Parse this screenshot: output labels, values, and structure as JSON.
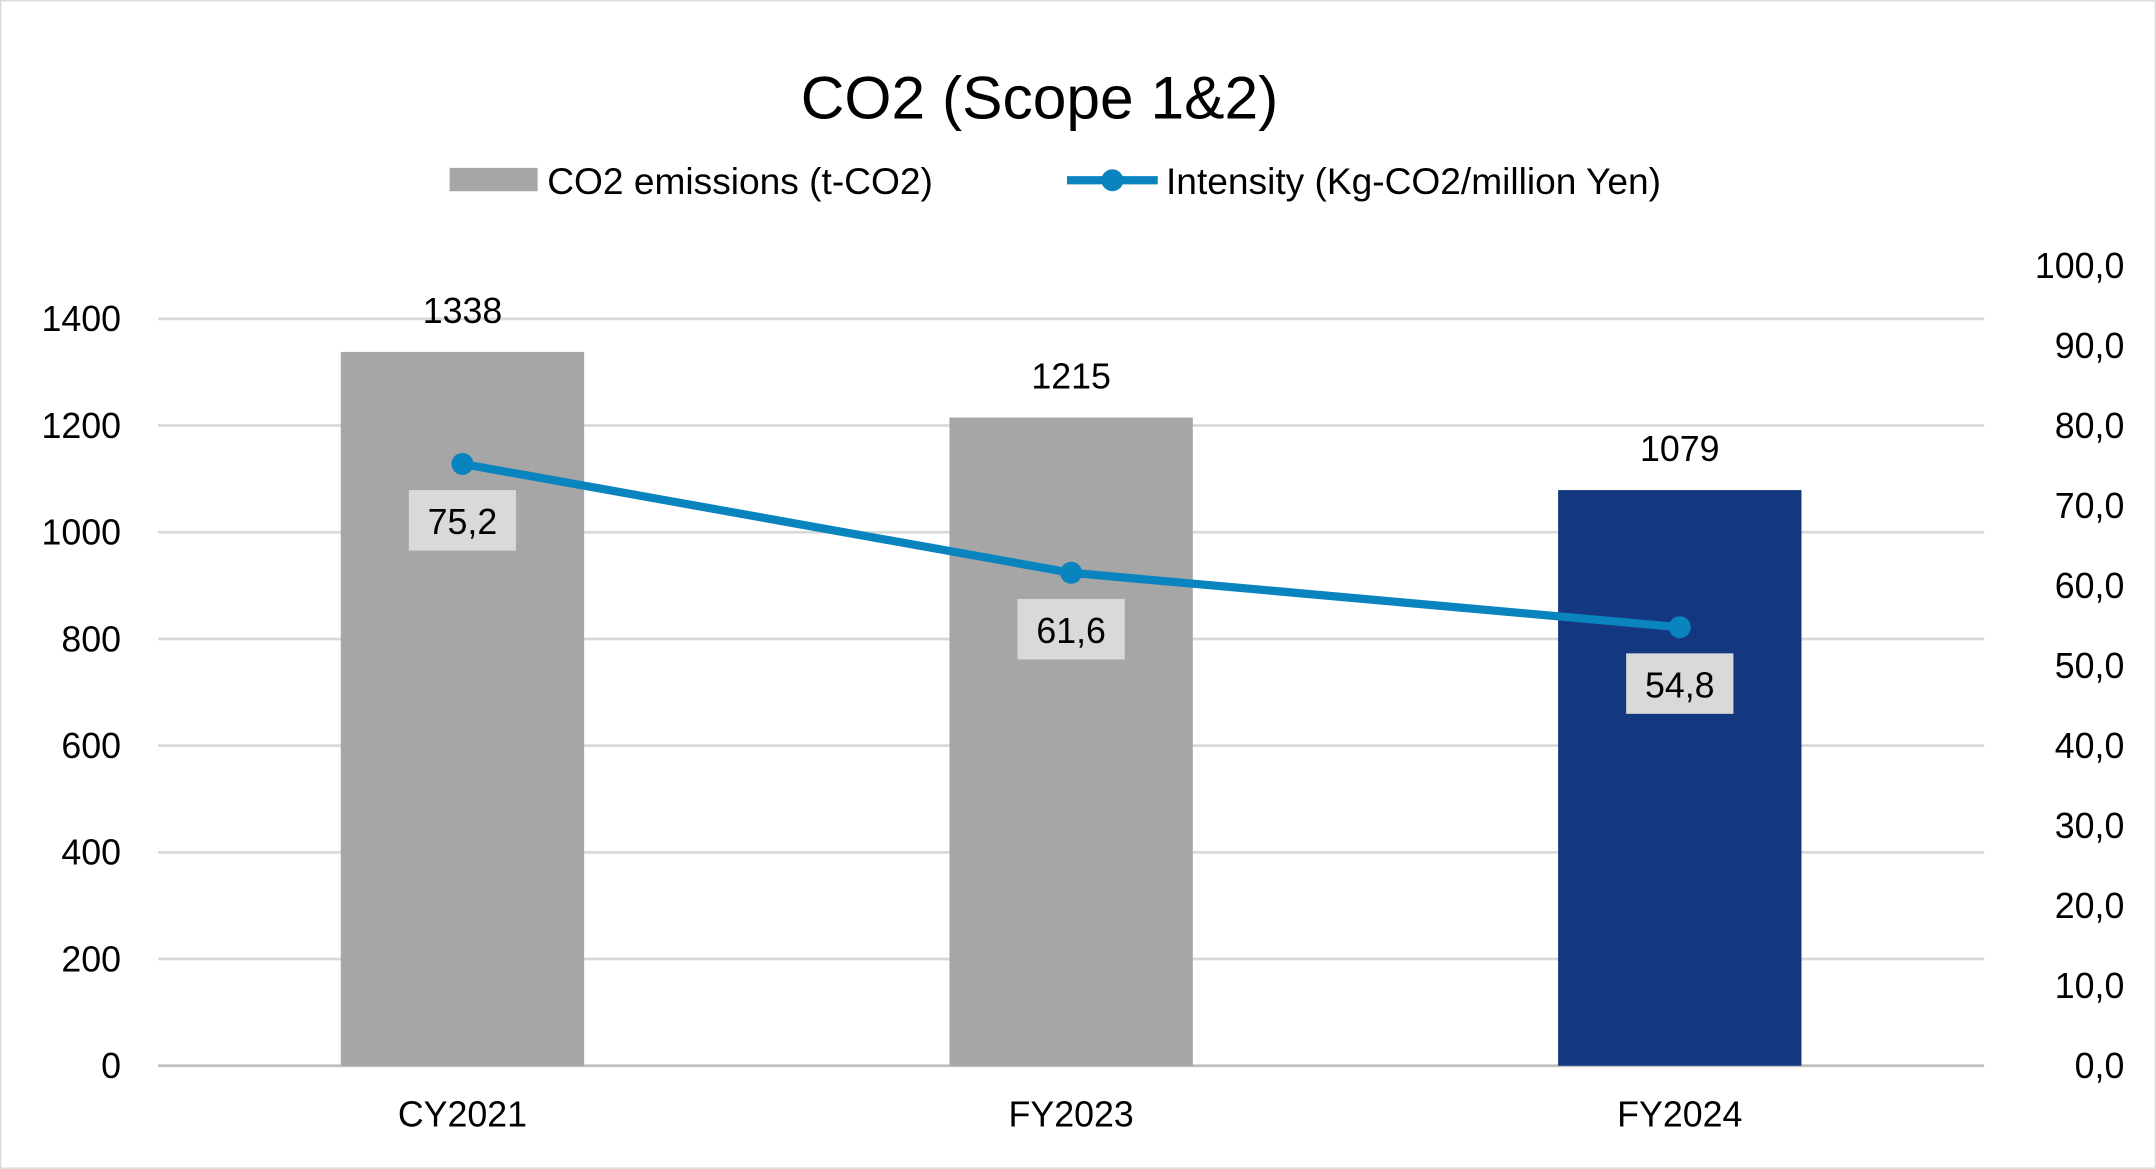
{
  "chart_data": {
    "type": "bar+line",
    "title": "CO2 (Scope 1&2)",
    "categories": [
      "CY2021",
      "FY2023",
      "FY2024"
    ],
    "series": [
      {
        "name": "CO2 emissions (t-CO2)",
        "type": "bar",
        "axis": "left",
        "values": [
          1338,
          1215,
          1079
        ],
        "labels": [
          "1338",
          "1215",
          "1079"
        ],
        "colors": [
          "#A6A6A6",
          "#A6A6A6",
          "#14387F"
        ]
      },
      {
        "name": "Intensity (Kg-CO2/million Yen)",
        "type": "line",
        "axis": "right",
        "values": [
          75.2,
          61.6,
          54.8
        ],
        "labels": [
          "75,2",
          "61,6",
          "54,8"
        ],
        "color": "#0A84BF"
      }
    ],
    "left_axis": {
      "range": [
        0,
        1500
      ],
      "ticks": [
        "0",
        "200",
        "400",
        "600",
        "800",
        "1000",
        "1200",
        "1400"
      ],
      "tick_values": [
        0,
        200,
        400,
        600,
        800,
        1000,
        1200,
        1400
      ]
    },
    "right_axis": {
      "range": [
        0,
        100
      ],
      "ticks": [
        "0,0",
        "10,0",
        "20,0",
        "30,0",
        "40,0",
        "50,0",
        "60,0",
        "70,0",
        "80,0",
        "90,0",
        "100,0"
      ],
      "tick_values": [
        0,
        10,
        20,
        30,
        40,
        50,
        60,
        70,
        80,
        90,
        100
      ]
    },
    "grid": true,
    "legend_position": "top"
  }
}
